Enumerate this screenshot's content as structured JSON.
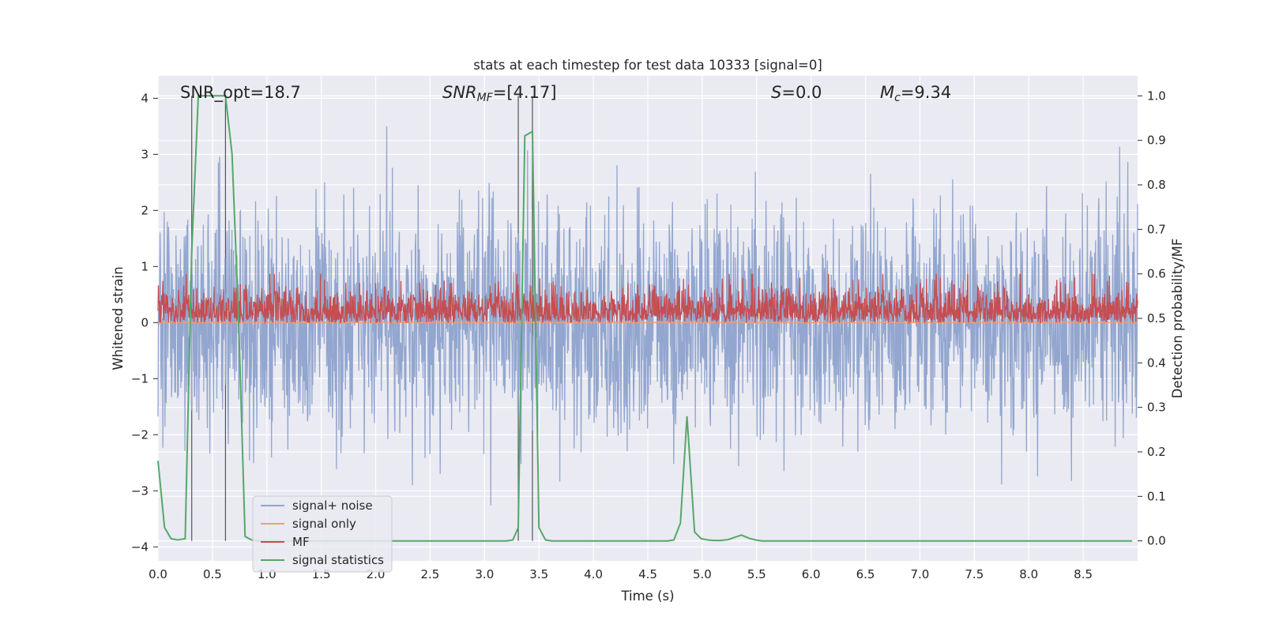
{
  "chart_data": {
    "type": "line",
    "title": "stats at each timestep for test data 10333 [signal=0]",
    "xlabel": "Time (s)",
    "ylabel": "Whitened strain",
    "y2label": "Detection probability/MF",
    "xlim": [
      0,
      9
    ],
    "ylim": [
      -4.25,
      4.4
    ],
    "y2lim": [
      -0.045,
      1.045
    ],
    "xticks": [
      "0.0",
      "0.5",
      "1.0",
      "1.5",
      "2.0",
      "2.5",
      "3.0",
      "3.5",
      "4.0",
      "4.5",
      "5.0",
      "5.5",
      "6.0",
      "6.5",
      "7.0",
      "7.5",
      "8.0",
      "8.5"
    ],
    "yticks": [
      "−4",
      "−3",
      "−2",
      "−1",
      "0",
      "1",
      "2",
      "3",
      "4"
    ],
    "y2ticks": [
      "0.0",
      "0.1",
      "0.2",
      "0.3",
      "0.4",
      "0.5",
      "0.6",
      "0.7",
      "0.8",
      "0.9",
      "1.0"
    ],
    "grid": true,
    "legend_position": "lower-left",
    "annotations": {
      "snr_opt": "SNR_opt=18.7",
      "snr_mf_sym": "SNR",
      "snr_mf_sub": "MF",
      "snr_mf_val": "=[4.17]",
      "s_sym": "S",
      "s_val": "=0.0",
      "mc_sym": "M",
      "mc_sub": "c",
      "mc_val": "=9.34"
    },
    "vertical_markers_x": [
      0.31,
      0.62,
      3.31,
      3.44
    ],
    "series": [
      {
        "name": "signal+ noise",
        "axis": "left",
        "color": "#92a6cf",
        "kind": "noise",
        "amplitude_std": 1.0,
        "range_approx": [
          -3.75,
          3.75
        ]
      },
      {
        "name": "signal only",
        "axis": "left",
        "color": "#e8a07e",
        "kind": "constant",
        "values": [
          0,
          0
        ]
      },
      {
        "name": "MF",
        "axis": "right",
        "color": "#c44e52",
        "kind": "noise",
        "range_approx": [
          0.49,
          0.6
        ]
      },
      {
        "name": "signal statistics",
        "axis": "right",
        "color": "#55a868",
        "kind": "line",
        "x": [
          0.0,
          0.06,
          0.12,
          0.18,
          0.25,
          0.31,
          0.37,
          0.43,
          0.5,
          0.56,
          0.62,
          0.68,
          0.74,
          0.8,
          0.86,
          0.93,
          3.2,
          3.26,
          3.31,
          3.37,
          3.44,
          3.5,
          3.56,
          3.62,
          4.68,
          4.74,
          4.8,
          4.86,
          4.93,
          4.99,
          5.05,
          5.11,
          5.17,
          5.24,
          5.3,
          5.36,
          5.43,
          5.49,
          5.55,
          5.61,
          8.95
        ],
        "values": [
          0.18,
          0.03,
          0.005,
          0.002,
          0.005,
          0.65,
          1.0,
          1.0,
          1.0,
          1.0,
          1.0,
          0.87,
          0.5,
          0.01,
          0.002,
          0.0,
          0.0,
          0.002,
          0.03,
          0.91,
          0.92,
          0.03,
          0.002,
          0.0,
          0.0,
          0.002,
          0.04,
          0.28,
          0.02,
          0.005,
          0.002,
          0.001,
          0.001,
          0.003,
          0.008,
          0.013,
          0.006,
          0.002,
          0.0,
          0.0,
          0.0
        ]
      }
    ]
  }
}
